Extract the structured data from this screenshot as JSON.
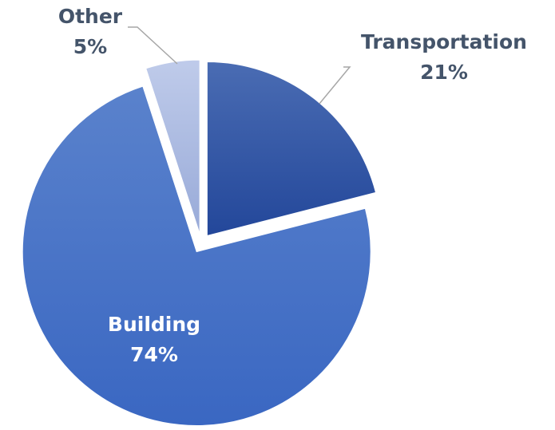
{
  "chart_data": {
    "type": "pie",
    "categories": [
      "Transportation",
      "Building",
      "Other"
    ],
    "values": [
      21,
      74,
      5
    ],
    "value_labels": [
      "21%",
      "74%",
      "5%"
    ],
    "colors": [
      "#2f54a3",
      "#4472c4",
      "#b4c2e6"
    ]
  }
}
